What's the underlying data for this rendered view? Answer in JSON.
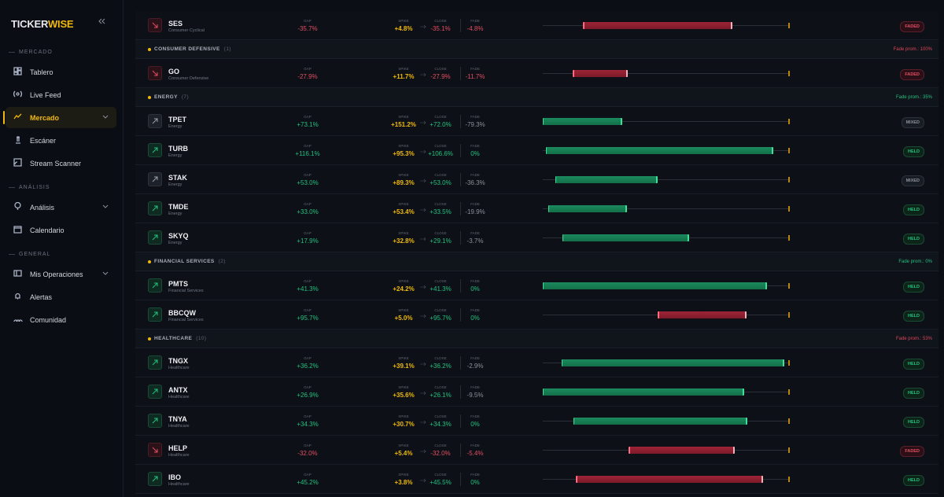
{
  "sidebar": {
    "logo": {
      "first": "TICKER",
      "second": "WISE"
    },
    "sections": [
      {
        "title": "MERCADO",
        "items": [
          {
            "label": "Tablero"
          },
          {
            "label": "Live Feed"
          },
          {
            "label": "Mercado",
            "active": true,
            "expandable": true
          },
          {
            "label": "Escáner"
          },
          {
            "label": "Stream Scanner"
          }
        ]
      },
      {
        "title": "ANÁLISIS",
        "items": [
          {
            "label": "Análisis",
            "expandable": true
          },
          {
            "label": "Calendario"
          }
        ]
      },
      {
        "title": "GENERAL",
        "items": [
          {
            "label": "Mis Operaciones",
            "expandable": true
          },
          {
            "label": "Alertas"
          },
          {
            "label": "Comunidad"
          }
        ]
      }
    ]
  },
  "column_labels": {
    "gap": "GAP",
    "spike": "SPIKE",
    "close": "CLOSE",
    "fade": "FADE"
  },
  "top_rows": [
    {
      "ticker": "SES",
      "sector": "Consumer Cyclical",
      "gap": "-35.7%",
      "spike": "+4.8%",
      "close": "-35.1%",
      "fade": "-4.8%",
      "status": "FADED"
    }
  ],
  "groups": [
    {
      "name": "CONSUMER DEFENSIVE",
      "count": "(1)",
      "fade_avg": "Fade prom.: 100%",
      "fade_color": "#d9475a",
      "rows": [
        {
          "ticker": "GO",
          "sector": "Consumer Defensive",
          "gap": "-27.9%",
          "spike": "+11.7%",
          "close": "-27.9%",
          "fade": "-11.7%",
          "status": "FADED"
        }
      ]
    },
    {
      "name": "ENERGY",
      "count": "(7)",
      "fade_avg": "Fade prom.: 35%",
      "fade_color": "#22c17f",
      "rows": [
        {
          "ticker": "TPET",
          "sector": "Energy",
          "gap": "+73.1%",
          "spike": "+151.2%",
          "close": "+72.0%",
          "fade": "-79.3%",
          "status": "MIXED"
        },
        {
          "ticker": "TURB",
          "sector": "Energy",
          "gap": "+116.1%",
          "spike": "+95.3%",
          "close": "+106.6%",
          "fade": "0%",
          "status": "HELD"
        },
        {
          "ticker": "STAK",
          "sector": "Energy",
          "gap": "+53.0%",
          "spike": "+89.3%",
          "close": "+53.0%",
          "fade": "-36.3%",
          "status": "MIXED"
        },
        {
          "ticker": "TMDE",
          "sector": "Energy",
          "gap": "+33.0%",
          "spike": "+53.4%",
          "close": "+33.5%",
          "fade": "-19.9%",
          "status": "HELD"
        },
        {
          "ticker": "SKYQ",
          "sector": "Energy",
          "gap": "+17.9%",
          "spike": "+32.8%",
          "close": "+29.1%",
          "fade": "-3.7%",
          "status": "HELD"
        }
      ]
    },
    {
      "name": "FINANCIAL SERVICES",
      "count": "(2)",
      "fade_avg": "Fade prom.: 0%",
      "fade_color": "#22c17f",
      "rows": [
        {
          "ticker": "PMTS",
          "sector": "Financial Services",
          "gap": "+41.3%",
          "spike": "+24.2%",
          "close": "+41.3%",
          "fade": "0%",
          "status": "HELD"
        },
        {
          "ticker": "BBCQW",
          "sector": "Financial Services",
          "gap": "+95.7%",
          "spike": "+5.0%",
          "close": "+95.7%",
          "fade": "0%",
          "status": "HELD"
        }
      ]
    },
    {
      "name": "HEALTHCARE",
      "count": "(10)",
      "fade_avg": "Fade prom.: 53%",
      "fade_color": "#d9475a",
      "rows": [
        {
          "ticker": "TNGX",
          "sector": "Healthcare",
          "gap": "+36.2%",
          "spike": "+39.1%",
          "close": "+36.2%",
          "fade": "-2.9%",
          "status": "HELD"
        },
        {
          "ticker": "ANTX",
          "sector": "Healthcare",
          "gap": "+26.9%",
          "spike": "+35.6%",
          "close": "+26.1%",
          "fade": "-9.5%",
          "status": "HELD"
        },
        {
          "ticker": "TNYA",
          "sector": "Healthcare",
          "gap": "+34.3%",
          "spike": "+30.7%",
          "close": "+34.3%",
          "fade": "0%",
          "status": "HELD"
        },
        {
          "ticker": "HELP",
          "sector": "Healthcare",
          "gap": "-32.0%",
          "spike": "+5.4%",
          "close": "-32.0%",
          "fade": "-5.4%",
          "status": "FADED"
        },
        {
          "ticker": "IBO",
          "sector": "Healthcare",
          "gap": "+45.2%",
          "spike": "+3.8%",
          "close": "+45.5%",
          "fade": "0%",
          "status": "HELD"
        }
      ]
    }
  ]
}
